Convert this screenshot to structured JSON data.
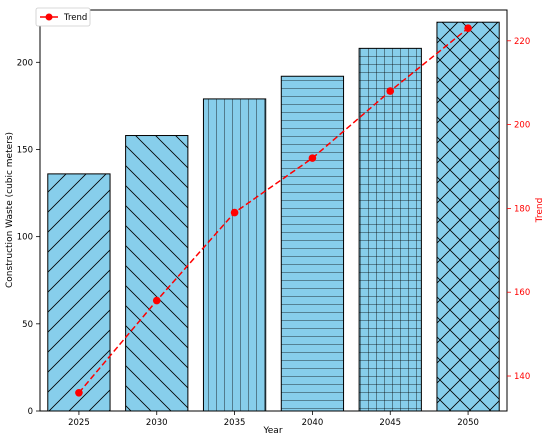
{
  "chart_data": {
    "type": "bar",
    "categories": [
      "2025",
      "2030",
      "2035",
      "2040",
      "2045",
      "2050"
    ],
    "xlabel": "Year",
    "series": [
      {
        "name": "Construction Waste",
        "axis": "left",
        "kind": "bar",
        "values": [
          136,
          158,
          179,
          192,
          208,
          223
        ],
        "color": "#87CEEB",
        "edgecolor": "#000000",
        "hatches": [
          "diagonal-up",
          "diagonal-down",
          "vertical",
          "horizontal",
          "grid",
          "crosshatch"
        ]
      },
      {
        "name": "Trend",
        "axis": "right",
        "kind": "line",
        "values": [
          136,
          158,
          179,
          192,
          208,
          223
        ],
        "color": "#FF0000",
        "linestyle": "dashed",
        "marker": "circle"
      }
    ],
    "y_left": {
      "label": "Construction Waste (cubic meters)",
      "ylim": [
        0,
        230
      ],
      "ticks": [
        0,
        50,
        100,
        150,
        200
      ]
    },
    "y_right": {
      "label": "Trend",
      "ylim": [
        131.65,
        227.35
      ],
      "ticks": [
        140,
        160,
        180,
        200,
        220
      ],
      "color": "#FF0000"
    },
    "legend": {
      "position": "top-left",
      "entries": [
        "Trend"
      ]
    },
    "grid": false
  }
}
